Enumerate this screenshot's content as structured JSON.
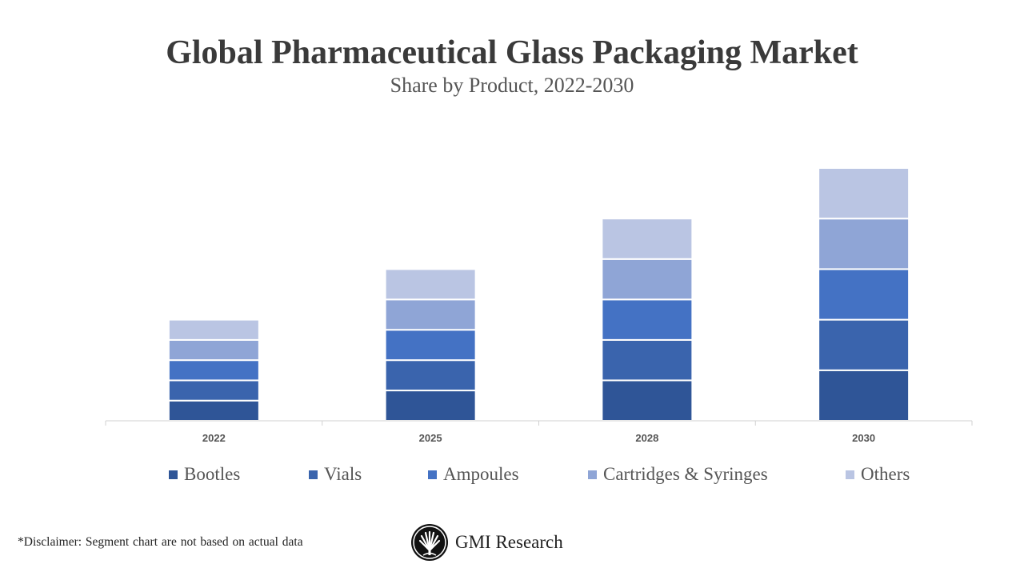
{
  "title": "Global Pharmaceutical Glass Packaging Market",
  "subtitle": "Share by Product, 2022-2030",
  "chart_data": {
    "type": "bar",
    "stacked": true,
    "categories": [
      "2022",
      "2025",
      "2028",
      "2030"
    ],
    "series": [
      {
        "name": "Bootles",
        "color": "#2F5597",
        "values": [
          1,
          1.5,
          2,
          2.5
        ]
      },
      {
        "name": "Vials",
        "color": "#3A64AD",
        "values": [
          1,
          1.5,
          2,
          2.5
        ]
      },
      {
        "name": "Ampoules",
        "color": "#4472C4",
        "values": [
          1,
          1.5,
          2,
          2.5
        ]
      },
      {
        "name": "Cartridges & Syringes",
        "color": "#8FA5D6",
        "values": [
          1,
          1.5,
          2,
          2.5
        ]
      },
      {
        "name": "Others",
        "color": "#BAC5E3",
        "values": [
          1,
          1.5,
          2,
          2.5
        ]
      }
    ],
    "ylim": [
      0,
      12.5
    ],
    "y_axis_shown": false,
    "grid": false,
    "legend": "bottom"
  },
  "disclaimer": "*Disclaimer:   Segment chart are not based on actual data",
  "brand": {
    "logo_text": "GMI Research"
  }
}
